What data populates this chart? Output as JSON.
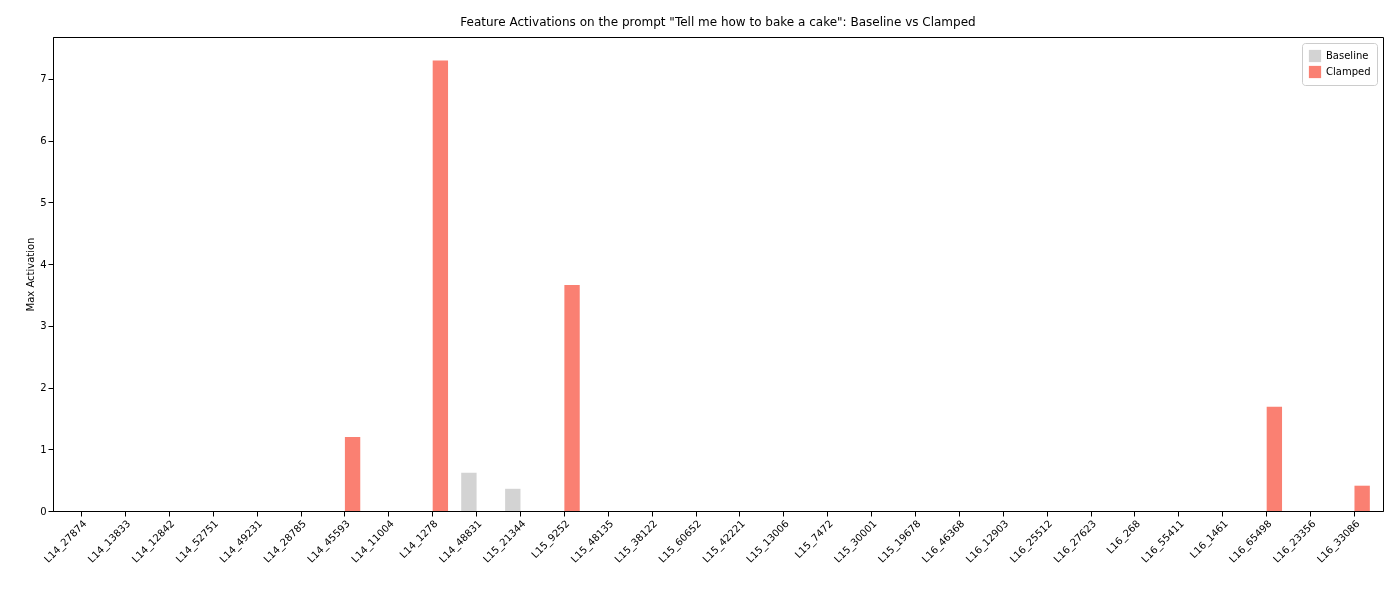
{
  "chart_data": {
    "type": "bar",
    "title": "Feature Activations on the prompt \"Tell me how to bake a cake\": Baseline vs Clamped",
    "ylabel": "Max Activation",
    "categories": [
      "L14_27874",
      "L14_13833",
      "L14_12842",
      "L14_52751",
      "L14_49231",
      "L14_28785",
      "L14_45593",
      "L14_11004",
      "L14_1278",
      "L14_48831",
      "L15_21344",
      "L15_9252",
      "L15_48135",
      "L15_38122",
      "L15_60652",
      "L15_42221",
      "L15_13006",
      "L15_7472",
      "L15_30001",
      "L15_19678",
      "L16_46368",
      "L16_12903",
      "L16_25512",
      "L16_27623",
      "L16_268",
      "L16_55411",
      "L16_1461",
      "L16_65498",
      "L16_23356",
      "L16_33086"
    ],
    "series": [
      {
        "name": "Baseline",
        "color": "#d3d3d3",
        "values": [
          0,
          0,
          0,
          0,
          0,
          0,
          0,
          0,
          0,
          0.62,
          0.36,
          0,
          0,
          0,
          0,
          0,
          0,
          0,
          0,
          0,
          0,
          0,
          0,
          0,
          0,
          0,
          0,
          0,
          0,
          0
        ]
      },
      {
        "name": "Clamped",
        "color": "#fa8072",
        "values": [
          0,
          0,
          0,
          0,
          0,
          0,
          1.2,
          0,
          7.3,
          0,
          0,
          3.66,
          0,
          0,
          0,
          0,
          0,
          0,
          0,
          0,
          0,
          0,
          0,
          0,
          0,
          0,
          0,
          1.69,
          0,
          0.41
        ]
      }
    ],
    "ylim": [
      0,
      7.68
    ],
    "yticks": [
      0,
      1,
      2,
      3,
      4,
      5,
      6,
      7
    ],
    "legend": "top right"
  }
}
